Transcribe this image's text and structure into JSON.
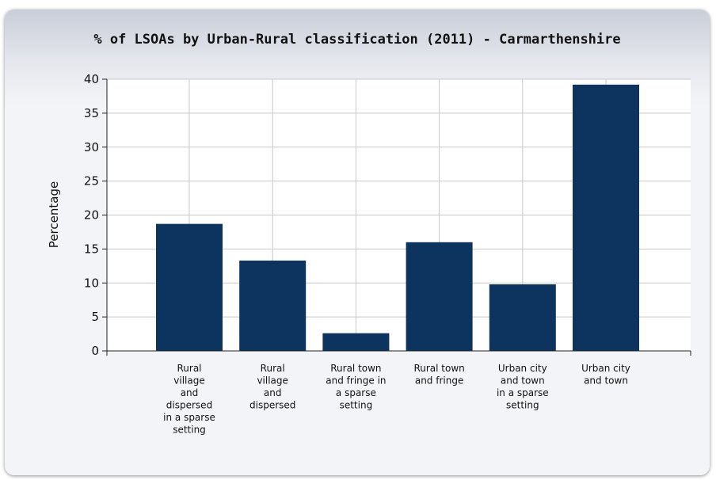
{
  "chart_data": {
    "type": "bar",
    "title": "% of LSOAs by Urban-Rural classification (2011) - Carmarthenshire",
    "ylabel": "Percentage",
    "xlabel": "",
    "ylim": [
      0,
      40
    ],
    "yticks": [
      0,
      5,
      10,
      15,
      20,
      25,
      30,
      35,
      40
    ],
    "grid": true,
    "bar_color": "#0d335f",
    "categories": [
      [
        "Rural",
        "village",
        "and",
        "dispersed",
        "in a sparse",
        "setting"
      ],
      [
        "Rural",
        "village",
        "and",
        "dispersed"
      ],
      [
        "Rural town",
        "and fringe in",
        "a sparse",
        "setting"
      ],
      [
        "Rural town",
        "and fringe"
      ],
      [
        "Urban city",
        "and town",
        "in a sparse",
        "setting"
      ],
      [
        "Urban city",
        "and town"
      ]
    ],
    "values": [
      18.7,
      13.3,
      2.6,
      16.0,
      9.8,
      39.2
    ]
  }
}
